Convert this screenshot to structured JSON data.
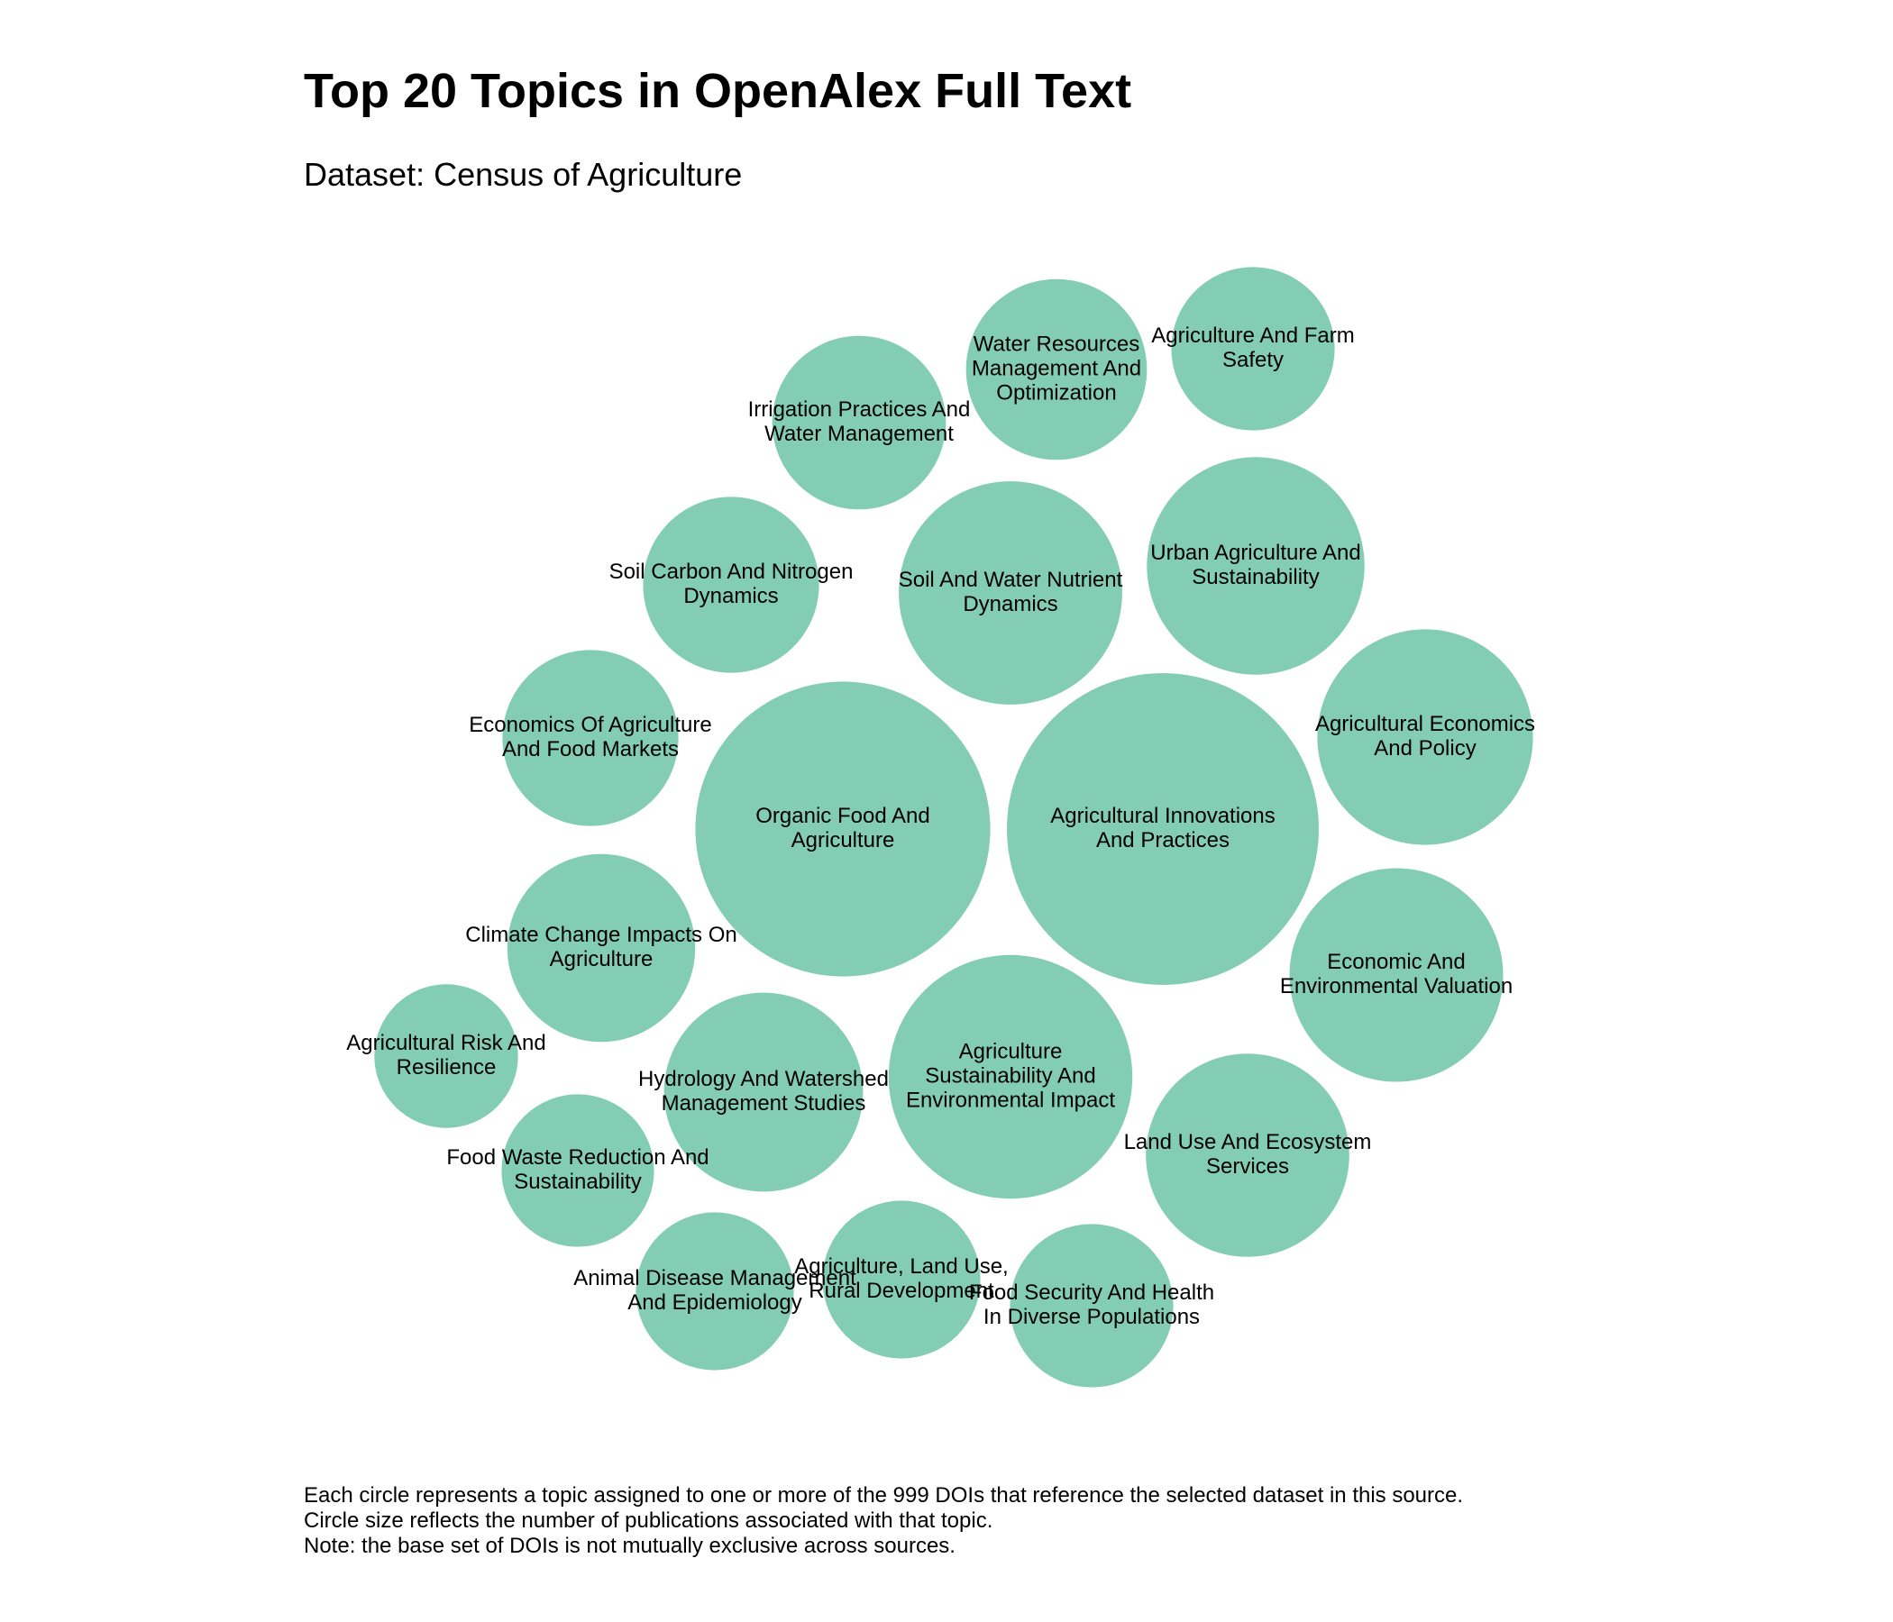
{
  "title": "Top 20 Topics in OpenAlex Full Text",
  "subtitle": "Dataset: Census of Agriculture",
  "notes": [
    "Each circle represents a topic assigned to one or more of the 999 DOIs that reference the selected dataset in this source.",
    "Circle size reflects the number of publications associated with that topic.",
    "Note: the base set of DOIs is not mutually exclusive across sources."
  ],
  "colors": {
    "bubble": "#84CDB5",
    "text": "#000000",
    "background": "#FFFFFF"
  },
  "chart_data": {
    "type": "packed-bubble",
    "title": "Top 20 Topics in OpenAlex Full Text",
    "subtitle": "Dataset: Census of Agriculture",
    "topics": [
      {
        "name": "Agricultural Innovations And Practices",
        "label_lines": [
          "Agricultural Innovations",
          "And Practices"
        ],
        "value": 113
      },
      {
        "name": "Organic Food And Agriculture",
        "label_lines": [
          "Organic Food And",
          "Agriculture"
        ],
        "value": 101
      },
      {
        "name": "Agriculture Sustainability And Environmental Impact",
        "label_lines": [
          "Agriculture",
          "Sustainability And",
          "Environmental Impact"
        ],
        "value": 69
      },
      {
        "name": "Soil And Water Nutrient Dynamics",
        "label_lines": [
          "Soil And Water Nutrient",
          "Dynamics"
        ],
        "value": 58
      },
      {
        "name": "Urban Agriculture And Sustainability",
        "label_lines": [
          "Urban Agriculture And",
          "Sustainability"
        ],
        "value": 55
      },
      {
        "name": "Agricultural Economics And Policy",
        "label_lines": [
          "Agricultural Economics",
          "And Policy"
        ],
        "value": 54
      },
      {
        "name": "Economic And Environmental Valuation",
        "label_lines": [
          "Economic And",
          "Environmental Valuation"
        ],
        "value": 53
      },
      {
        "name": "Land Use And Ecosystem Services",
        "label_lines": [
          "Land Use And Ecosystem",
          "Services"
        ],
        "value": 48
      },
      {
        "name": "Hydrology And Watershed Management Studies",
        "label_lines": [
          "Hydrology And Watershed",
          "Management Studies"
        ],
        "value": 46
      },
      {
        "name": "Climate Change Impacts On Agriculture",
        "label_lines": [
          "Climate Change Impacts On",
          "Agriculture"
        ],
        "value": 41
      },
      {
        "name": "Water Resources Management And Optimization",
        "label_lines": [
          "Water Resources",
          "Management And",
          "Optimization"
        ],
        "value": 38
      },
      {
        "name": "Soil Carbon And Nitrogen Dynamics",
        "label_lines": [
          "Soil Carbon And Nitrogen",
          "Dynamics"
        ],
        "value": 36
      },
      {
        "name": "Economics Of Agriculture And Food Markets",
        "label_lines": [
          "Economics Of Agriculture",
          "And Food Markets"
        ],
        "value": 36
      },
      {
        "name": "Irrigation Practices And Water Management",
        "label_lines": [
          "Irrigation Practices And",
          "Water Management"
        ],
        "value": 35
      },
      {
        "name": "Agriculture And Farm Safety",
        "label_lines": [
          "Agriculture And Farm",
          "Safety"
        ],
        "value": 31
      },
      {
        "name": "Food Security And Health In Diverse Populations",
        "label_lines": [
          "Food Security And Health",
          "In Diverse Populations"
        ],
        "value": 31
      },
      {
        "name": "Animal Disease Management And Epidemiology",
        "label_lines": [
          "Animal Disease Management",
          "And Epidemiology"
        ],
        "value": 29
      },
      {
        "name": "Agriculture, Land Use, Rural Development",
        "label_lines": [
          "Agriculture, Land Use,",
          "Rural Development"
        ],
        "value": 29
      },
      {
        "name": "Food Waste Reduction And Sustainability",
        "label_lines": [
          "Food Waste Reduction And",
          "Sustainability"
        ],
        "value": 27
      },
      {
        "name": "Agricultural Risk And Resilience",
        "label_lines": [
          "Agricultural Risk And",
          "Resilience"
        ],
        "value": 24
      }
    ]
  }
}
